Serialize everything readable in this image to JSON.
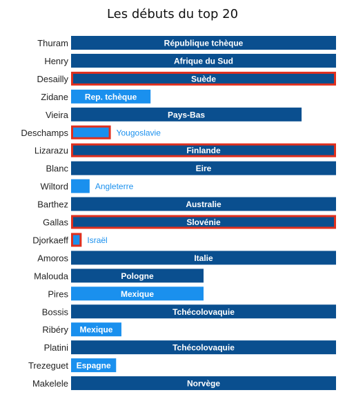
{
  "title": "Les débuts du top 20",
  "colors": {
    "dark": "#0a4f8f",
    "light": "#1a90ee",
    "highlight_border": "#e0301e",
    "label_inside": "#ffffff",
    "label_outside_light": "#1a90ee",
    "label_outside_dark": "#0a4f8f",
    "player_text": "#222222"
  },
  "chart_data": {
    "type": "bar",
    "orientation": "horizontal",
    "title": "Les débuts du top 20",
    "xlim": [
      0,
      100
    ],
    "grid": false,
    "legend": "none",
    "categories": [
      "Thuram",
      "Henry",
      "Desailly",
      "Zidane",
      "Vieira",
      "Deschamps",
      "Lizarazu",
      "Blanc",
      "Wiltord",
      "Barthez",
      "Gallas",
      "Djorkaeff",
      "Amoros",
      "Malouda",
      "Pires",
      "Bossis",
      "Ribéry",
      "Platini",
      "Trezeguet",
      "Makelele"
    ],
    "bars": [
      {
        "player": "Thuram",
        "opponent": "République tchèque",
        "value": 100,
        "shade": "dark",
        "highlight": false
      },
      {
        "player": "Henry",
        "opponent": "Afrique du Sud",
        "value": 100,
        "shade": "dark",
        "highlight": false
      },
      {
        "player": "Desailly",
        "opponent": "Suède",
        "value": 100,
        "shade": "dark",
        "highlight": true
      },
      {
        "player": "Zidane",
        "opponent": "Rep. tchèque",
        "value": 30,
        "shade": "light",
        "highlight": false
      },
      {
        "player": "Vieira",
        "opponent": "Pays-Bas",
        "value": 87,
        "shade": "dark",
        "highlight": false
      },
      {
        "player": "Deschamps",
        "opponent": "Yougoslavie",
        "value": 15,
        "shade": "light",
        "highlight": true
      },
      {
        "player": "Lizarazu",
        "opponent": "Finlande",
        "value": 100,
        "shade": "dark",
        "highlight": true
      },
      {
        "player": "Blanc",
        "opponent": "Eire",
        "value": 100,
        "shade": "dark",
        "highlight": false
      },
      {
        "player": "Wiltord",
        "opponent": "Angleterre",
        "value": 7,
        "shade": "light",
        "highlight": false
      },
      {
        "player": "Barthez",
        "opponent": "Australie",
        "value": 100,
        "shade": "dark",
        "highlight": false
      },
      {
        "player": "Gallas",
        "opponent": "Slovénie",
        "value": 100,
        "shade": "dark",
        "highlight": true
      },
      {
        "player": "Djorkaeff",
        "opponent": "Israël",
        "value": 4,
        "shade": "light",
        "highlight": true
      },
      {
        "player": "Amoros",
        "opponent": "Italie",
        "value": 100,
        "shade": "dark",
        "highlight": false
      },
      {
        "player": "Malouda",
        "opponent": "Pologne",
        "value": 50,
        "shade": "dark",
        "highlight": false
      },
      {
        "player": "Pires",
        "opponent": "Mexique",
        "value": 50,
        "shade": "light",
        "highlight": false
      },
      {
        "player": "Bossis",
        "opponent": "Tchécolovaquie",
        "value": 100,
        "shade": "dark",
        "highlight": false
      },
      {
        "player": "Ribéry",
        "opponent": "Mexique",
        "value": 19,
        "shade": "light",
        "highlight": false
      },
      {
        "player": "Platini",
        "opponent": "Tchécolovaquie",
        "value": 100,
        "shade": "dark",
        "highlight": false
      },
      {
        "player": "Trezeguet",
        "opponent": "Espagne",
        "value": 17,
        "shade": "light",
        "highlight": false
      },
      {
        "player": "Makelele",
        "opponent": "Norvège",
        "value": 100,
        "shade": "dark",
        "highlight": false
      }
    ]
  }
}
